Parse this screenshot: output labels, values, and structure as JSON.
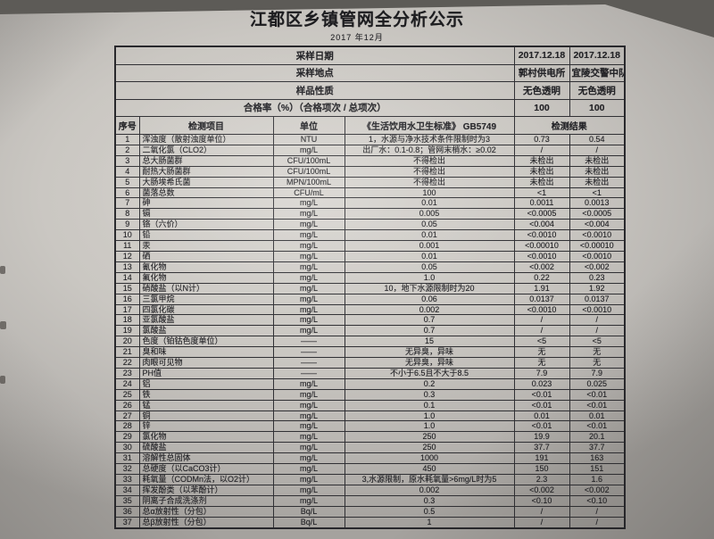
{
  "document": {
    "title": "江都区乡镇管网全分析公示",
    "date": "2017 年12月"
  },
  "colors": {
    "ink": "#232327",
    "paper": "#cac7c2",
    "background": "#5d5b57"
  },
  "meta": {
    "rows": [
      {
        "label": "采样日期",
        "values": [
          "2017.12.18",
          "2017.12.18"
        ]
      },
      {
        "label": "采样地点",
        "values": [
          "郭村供电所",
          "宜陵交警中队"
        ]
      },
      {
        "label": "样品性质",
        "values": [
          "无色透明",
          "无色透明"
        ]
      },
      {
        "label": "合格率（%）（合格项次 / 总项次）",
        "values": [
          "100",
          "100"
        ]
      }
    ]
  },
  "table": {
    "headers": {
      "no": "序号",
      "item": "检测项目",
      "unit": "单位",
      "standard": "《生活饮用水卫生标准》 GB5749",
      "result": "检测结果"
    },
    "rows": [
      [
        "1",
        "浑浊度（散射浊度单位）",
        "NTU",
        "1，水源与净水技术条件限制时为3",
        "0.73",
        "0.54"
      ],
      [
        "2",
        "二氧化氯（CLO2）",
        "mg/L",
        "出厂水：0.1-0.8；管网末梢水：≥0.02",
        "/",
        "/"
      ],
      [
        "3",
        "总大肠菌群",
        "CFU/100mL",
        "不得检出",
        "未检出",
        "未检出"
      ],
      [
        "4",
        "耐热大肠菌群",
        "CFU/100mL",
        "不得检出",
        "未检出",
        "未检出"
      ],
      [
        "5",
        "大肠埃希氏菌",
        "MPN/100mL",
        "不得检出",
        "未检出",
        "未检出"
      ],
      [
        "6",
        "菌落总数",
        "CFU/mL",
        "100",
        "<1",
        "<1"
      ],
      [
        "7",
        "砷",
        "mg/L",
        "0.01",
        "0.0011",
        "0.0013"
      ],
      [
        "8",
        "镉",
        "mg/L",
        "0.005",
        "<0.0005",
        "<0.0005"
      ],
      [
        "9",
        "铬（六价）",
        "mg/L",
        "0.05",
        "<0.004",
        "<0.004"
      ],
      [
        "10",
        "铅",
        "mg/L",
        "0.01",
        "<0.0010",
        "<0.0010"
      ],
      [
        "11",
        "汞",
        "mg/L",
        "0.001",
        "<0.00010",
        "<0.00010"
      ],
      [
        "12",
        "硒",
        "mg/L",
        "0.01",
        "<0.0010",
        "<0.0010"
      ],
      [
        "13",
        "氰化物",
        "mg/L",
        "0.05",
        "<0.002",
        "<0.002"
      ],
      [
        "14",
        "氟化物",
        "mg/L",
        "1.0",
        "0.22",
        "0.23"
      ],
      [
        "15",
        "硝酸盐（以N计）",
        "mg/L",
        "10，地下水源限制时为20",
        "1.91",
        "1.92"
      ],
      [
        "16",
        "三氯甲烷",
        "mg/L",
        "0.06",
        "0.0137",
        "0.0137"
      ],
      [
        "17",
        "四氯化碳",
        "mg/L",
        "0.002",
        "<0.0010",
        "<0.0010"
      ],
      [
        "18",
        "亚氯酸盐",
        "mg/L",
        "0.7",
        "/",
        "/"
      ],
      [
        "19",
        "氯酸盐",
        "mg/L",
        "0.7",
        "/",
        "/"
      ],
      [
        "20",
        "色度（铂钴色度单位）",
        "——",
        "15",
        "<5",
        "<5"
      ],
      [
        "21",
        "臭和味",
        "——",
        "无异臭，异味",
        "无",
        "无"
      ],
      [
        "22",
        "肉眼可见物",
        "——",
        "无异臭，异味",
        "无",
        "无"
      ],
      [
        "23",
        "PH值",
        "——",
        "不小于6.5且不大于8.5",
        "7.9",
        "7.9"
      ],
      [
        "24",
        "铝",
        "mg/L",
        "0.2",
        "0.023",
        "0.025"
      ],
      [
        "25",
        "铁",
        "mg/L",
        "0.3",
        "<0.01",
        "<0.01"
      ],
      [
        "26",
        "锰",
        "mg/L",
        "0.1",
        "<0.01",
        "<0.01"
      ],
      [
        "27",
        "铜",
        "mg/L",
        "1.0",
        "0.01",
        "0.01"
      ],
      [
        "28",
        "锌",
        "mg/L",
        "1.0",
        "<0.01",
        "<0.01"
      ],
      [
        "29",
        "氯化物",
        "mg/L",
        "250",
        "19.9",
        "20.1"
      ],
      [
        "30",
        "硫酸盐",
        "mg/L",
        "250",
        "37.7",
        "37.7"
      ],
      [
        "31",
        "溶解性总固体",
        "mg/L",
        "1000",
        "191",
        "163"
      ],
      [
        "32",
        "总硬度（以CaCO3计）",
        "mg/L",
        "450",
        "150",
        "151"
      ],
      [
        "33",
        "耗氧量（CODMn法，以O2计）",
        "mg/L",
        "3,水源限制，原水耗氧量>6mg/L时为5",
        "2.3",
        "1.6"
      ],
      [
        "34",
        "挥发酚类（以苯酚计）",
        "mg/L",
        "0.002",
        "<0.002",
        "<0.002"
      ],
      [
        "35",
        "阴离子合成洗涤剂",
        "mg/L",
        "0.3",
        "<0.10",
        "<0.10"
      ],
      [
        "36",
        "总α放射性（分包）",
        "Bq/L",
        "0.5",
        "/",
        "/"
      ],
      [
        "37",
        "总β放射性（分包）",
        "Bq/L",
        "1",
        "/",
        "/"
      ]
    ]
  }
}
